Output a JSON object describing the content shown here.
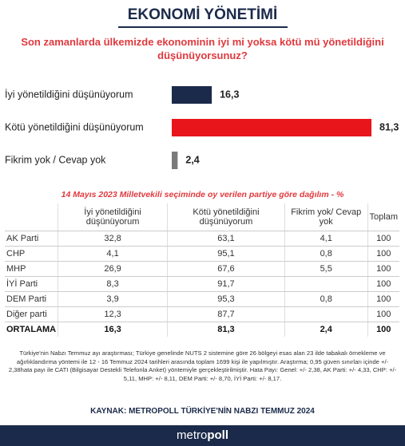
{
  "header": {
    "title": "EKONOMİ YÖNETİMİ"
  },
  "chart_data": {
    "type": "bar",
    "orientation": "horizontal",
    "title": "Son zamanlarda ülkemizde ekonominin iyi mi yoksa kötü mü yönetildiğini düşünüyorsunuz?",
    "categories": [
      "İyi yönetildiğini düşünüyorum",
      "Kötü yönetildiğini düşünüyorum",
      "Fikrim yok / Cevap yok"
    ],
    "values": [
      16.3,
      81.3,
      2.4
    ],
    "value_labels": [
      "16,3",
      "81,3",
      "2,4"
    ],
    "colors": [
      "#1b2a4a",
      "#e8161b",
      "#7a7a7a"
    ]
  },
  "table": {
    "title": "14 Mayıs 2023 Milletvekili seçiminde oy verilen partiye göre dağılım - %",
    "header": [
      null,
      "İyi yönetildiğini düşünüyorum",
      "Kötü yönetildiğini düşünüyorum",
      "Fikrim yok/ Cevap yok",
      "Toplam"
    ],
    "rows": [
      [
        "AK Parti",
        "32,8",
        "63,1",
        "4,1",
        "100"
      ],
      [
        "CHP",
        "4,1",
        "95,1",
        "0,8",
        "100"
      ],
      [
        "MHP",
        "26,9",
        "67,6",
        "5,5",
        "100"
      ],
      [
        "İYİ Parti",
        "8,3",
        "91,7",
        null,
        "100"
      ],
      [
        "DEM Parti",
        "3,9",
        "95,3",
        "0,8",
        "100"
      ],
      [
        "Diğer parti",
        "12,3",
        "87,7",
        null,
        "100"
      ],
      [
        "ORTALAMA",
        "16,3",
        "81,3",
        "2,4",
        "100"
      ]
    ]
  },
  "note": "Türkiye'nin Nabzı Temmuz ayı araştırması; Türkiye genelinde NUTS 2 sistemine göre 26 bölgeyi esas alan 23 ilde tabakalı örnekleme ve ağırlıklandırma yöntemi ile 12 - 16 Temmuz 2024 tarihleri arasında toplam 1699 kişi ile yapılmıştır. Araştırma; 0,95 güven sınırları içinde +/- 2,38hata payı ile CATI (Bilgisayar Destekli Telefonla Anket) yöntemiyle gerçekleştirilmiştir. Hata Payı: Genel: +/- 2,38, AK Parti: +/- 4,33, CHP: +/- 5,11, MHP: +/- 8,11, DEM Parti: +/- 8,70, İYİ Parti: +/- 8,17.",
  "source": "KAYNAK: METROPOLL TÜRKİYE'NİN NABZI TEMMUZ 2024",
  "footer": {
    "logo_light": "metro",
    "logo_bold": "poll"
  }
}
